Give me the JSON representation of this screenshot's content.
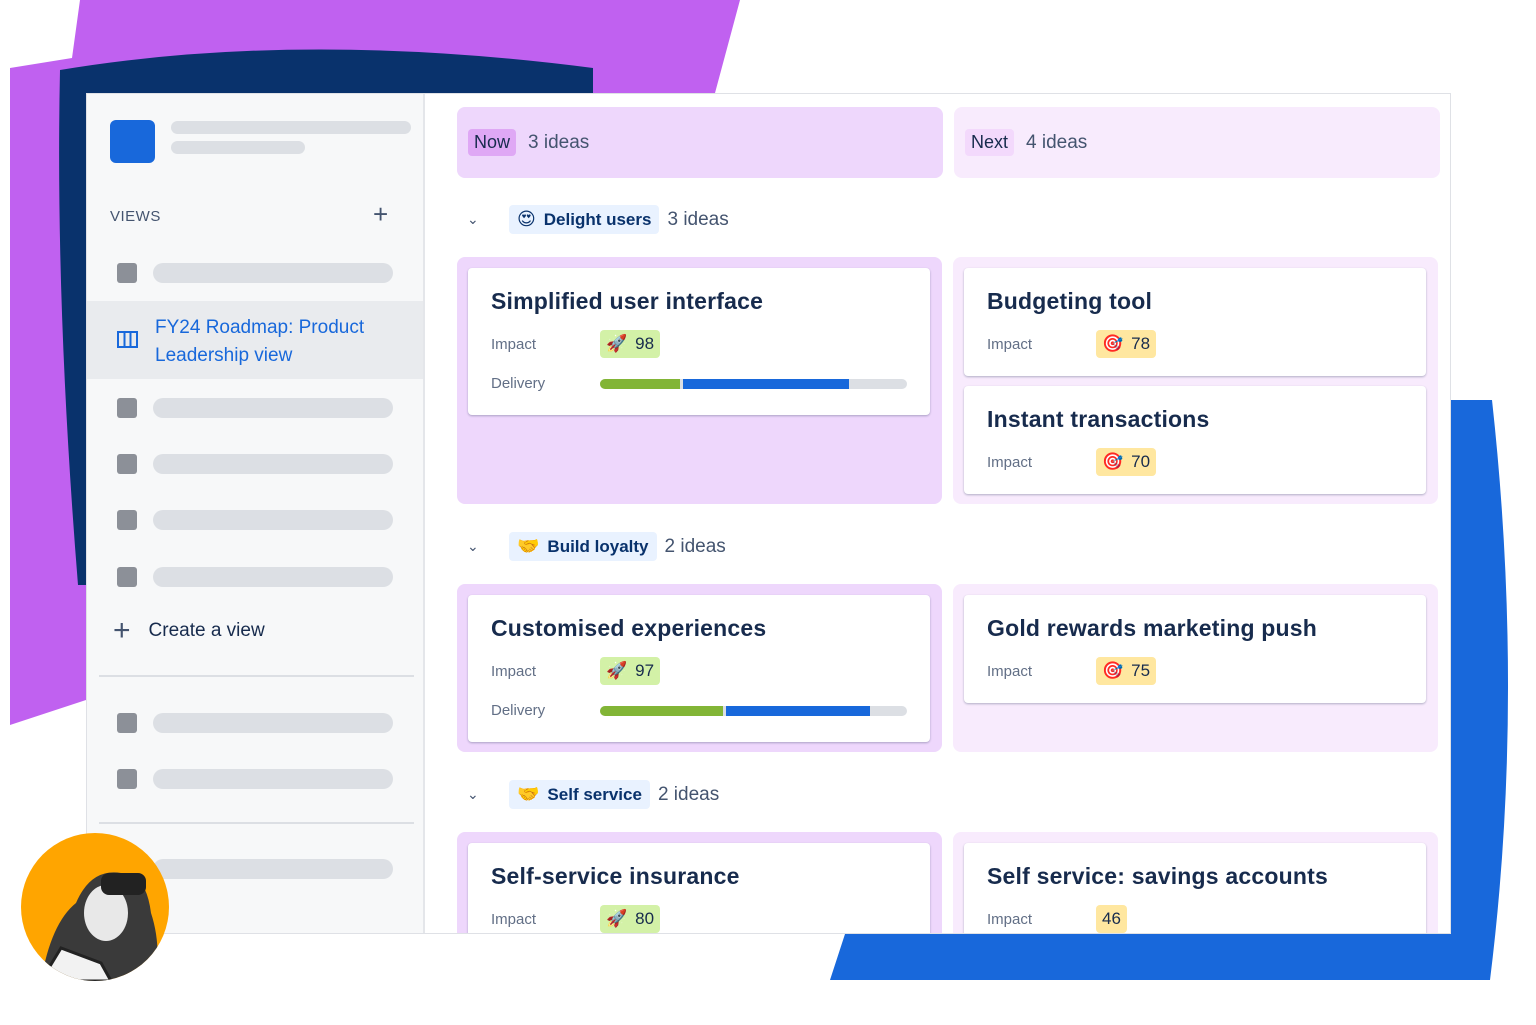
{
  "sidebar": {
    "views_label": "VIEWS",
    "active_view": "FY24 Roadmap: Product Leadership view",
    "create_view": "Create a view"
  },
  "columns": [
    {
      "tag": "Now",
      "count": "3 ideas",
      "tag_color": "#dfa8f5",
      "bg": "#eed7fc"
    },
    {
      "tag": "Next",
      "count": "4 ideas",
      "tag_color": "#f3d9fc",
      "bg": "#f8ebfd"
    }
  ],
  "groups": [
    {
      "emoji": "😍",
      "name": "Delight users",
      "count": "3 ideas",
      "now": [
        {
          "title": "Simplified user interface",
          "impact_label": "Impact",
          "impact": "98",
          "impact_icon": "rocket-icon",
          "delivery_label": "Delivery",
          "delivery_done": 0.26,
          "delivery_in_progress": 0.54
        }
      ],
      "next": [
        {
          "title": "Budgeting tool",
          "impact_label": "Impact",
          "impact": "78",
          "impact_icon": "target-icon"
        },
        {
          "title": "Instant transactions",
          "impact_label": "Impact",
          "impact": "70",
          "impact_icon": "target-icon"
        }
      ]
    },
    {
      "emoji": "🤝",
      "name": "Build loyalty",
      "count": "2 ideas",
      "now": [
        {
          "title": "Customised experiences",
          "impact_label": "Impact",
          "impact": "97",
          "impact_icon": "rocket-icon",
          "delivery_label": "Delivery",
          "delivery_done": 0.4,
          "delivery_in_progress": 0.47
        }
      ],
      "next": [
        {
          "title": "Gold rewards marketing push",
          "impact_label": "Impact",
          "impact": "75",
          "impact_icon": "target-icon"
        }
      ]
    },
    {
      "emoji": "🤝",
      "name": "Self service",
      "count": "2 ideas",
      "now": [
        {
          "title": "Self-service insurance",
          "impact_label": "Impact",
          "impact": "80",
          "impact_icon": "rocket-icon"
        }
      ],
      "next": [
        {
          "title": "Self service: savings accounts",
          "impact_label": "Impact",
          "impact": "46"
        }
      ]
    }
  ],
  "colors": {
    "green_badge": "#d3f1a7",
    "yellow_badge": "#ffe7a0",
    "done": "#82b536",
    "in_progress": "#1868db",
    "accent_blue": "#1868db",
    "purple": "#c061f0",
    "navy": "#09326c"
  }
}
